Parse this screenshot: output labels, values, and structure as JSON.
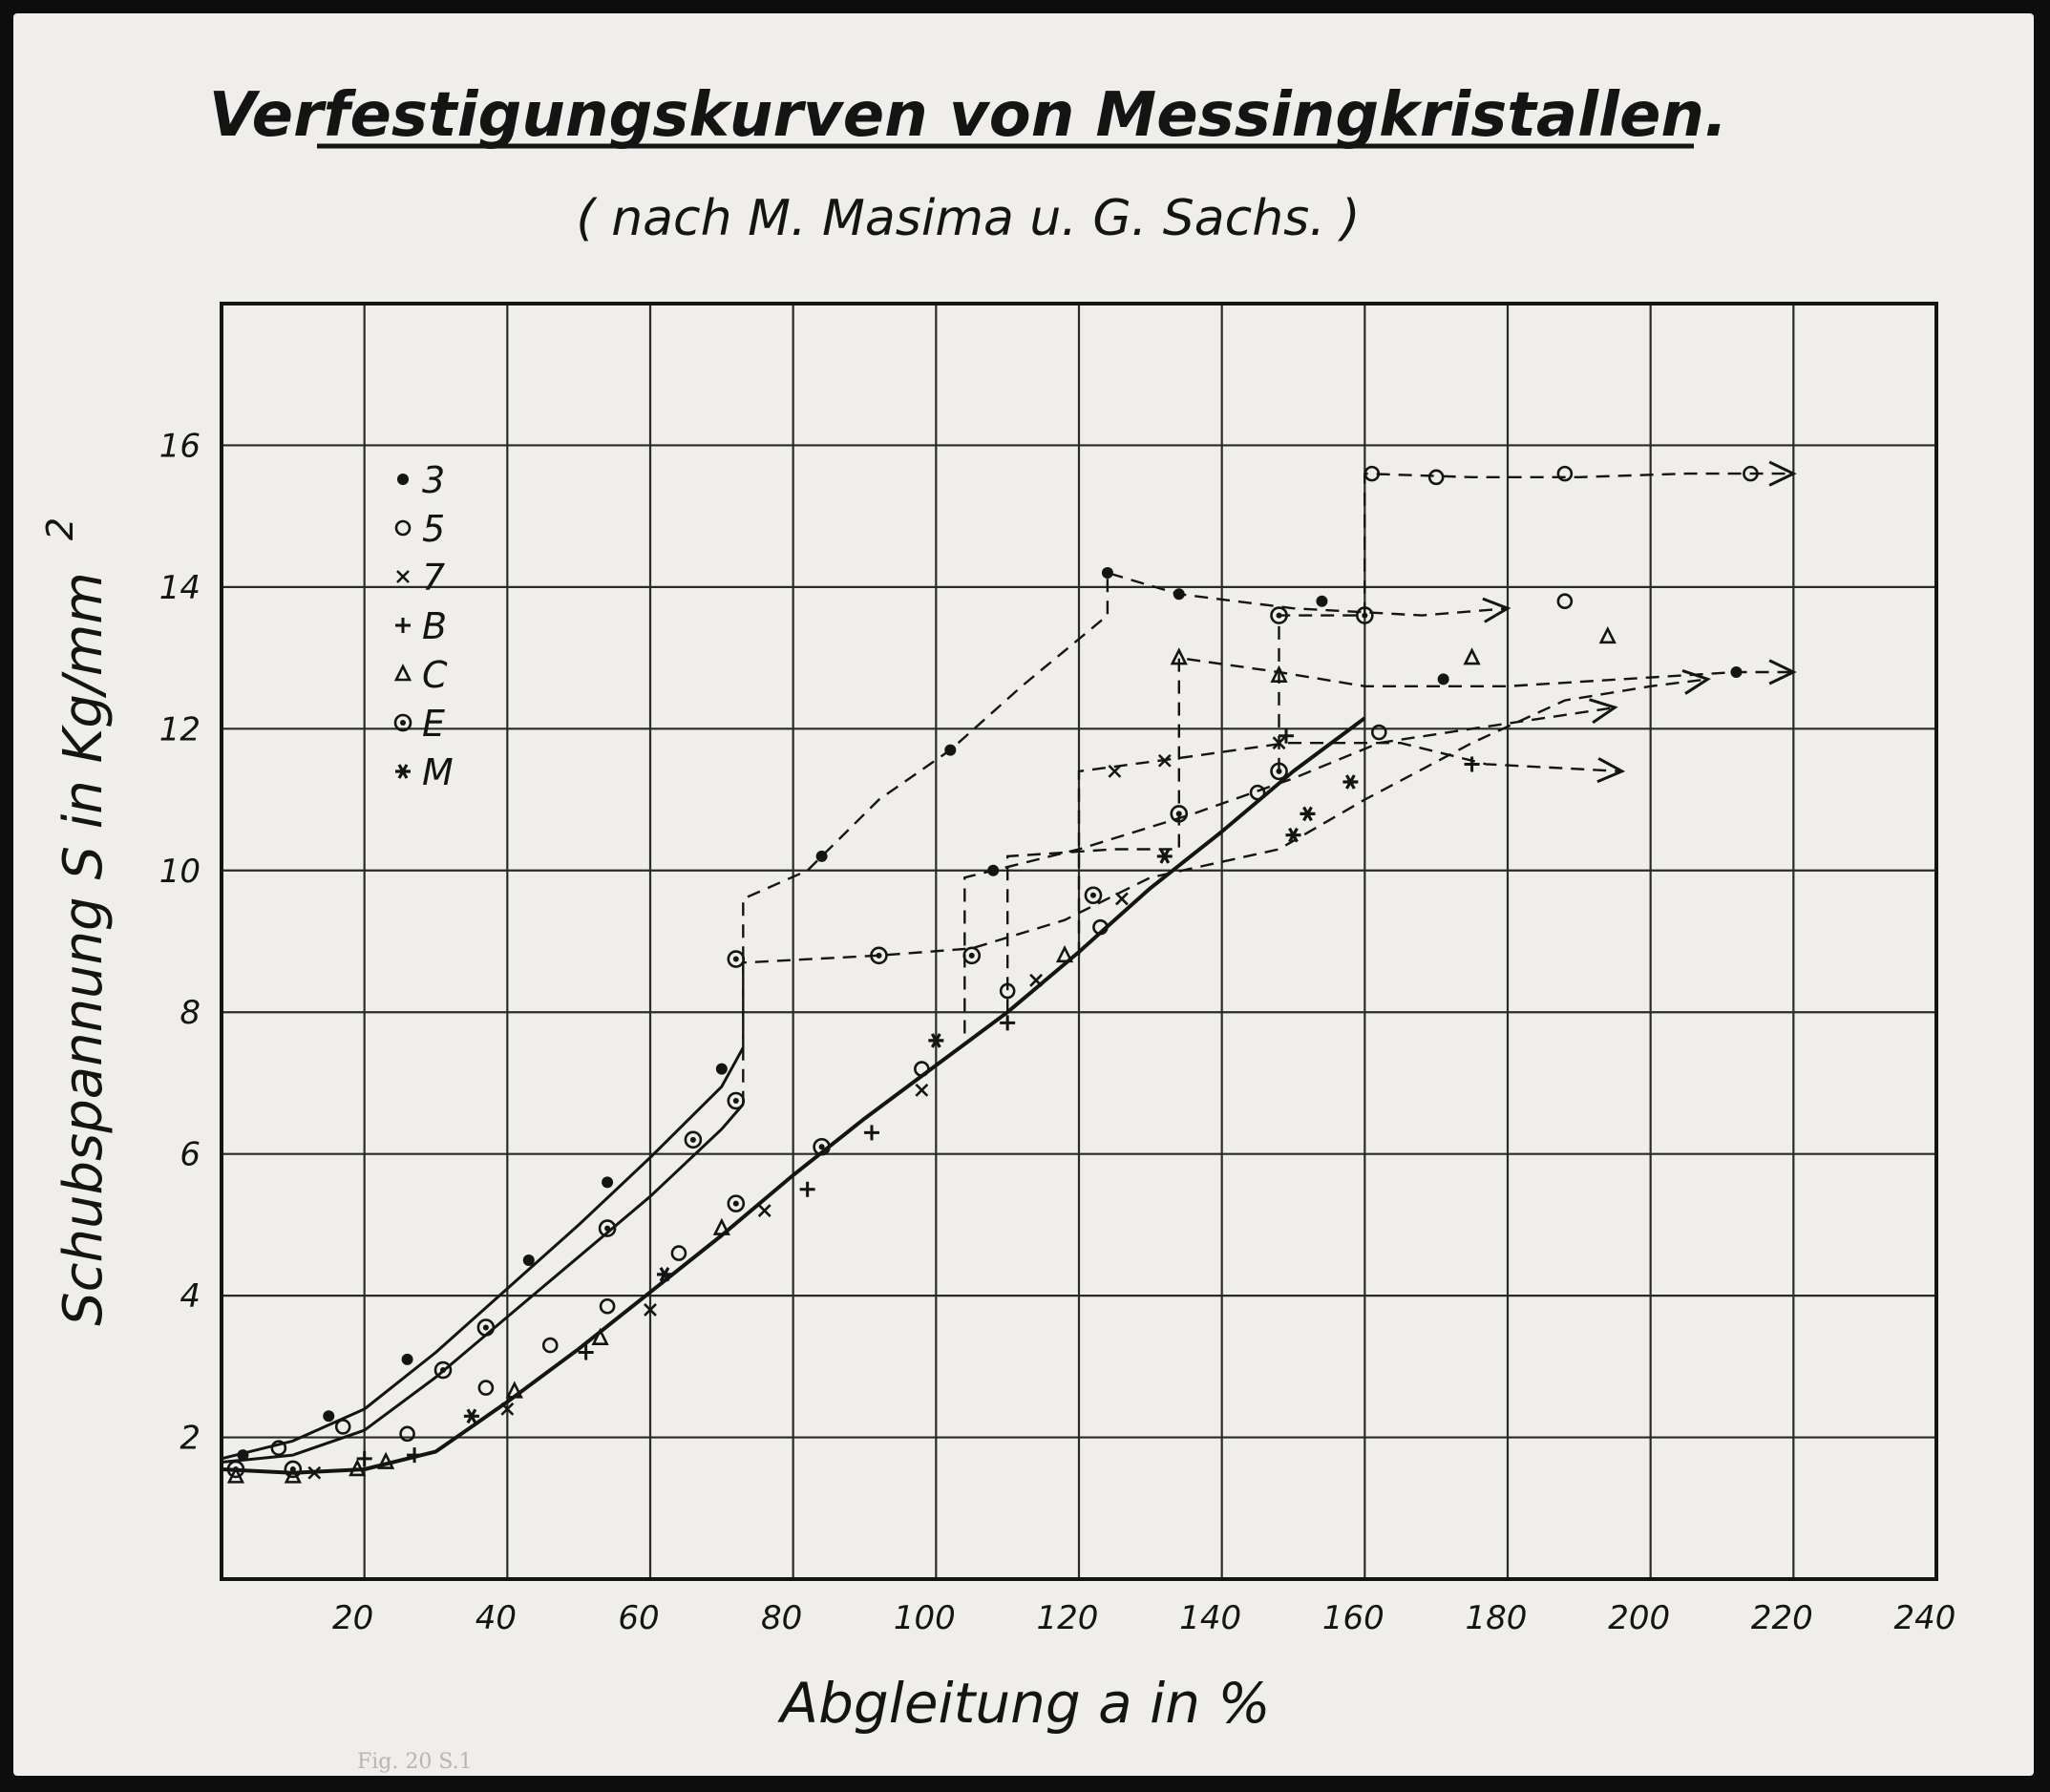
{
  "chart_data": {
    "type": "line",
    "title": "Verfestigungskurven von Messingkristallen.",
    "subtitle": "( nach M. Masima u. G. Sachs. )",
    "xlabel": "Abgleitung a in %",
    "ylabel": "Schubspannung S in Kg/mm",
    "ylabel_superscript": "2",
    "xlim": [
      0,
      240
    ],
    "ylim": [
      0,
      18
    ],
    "grid": true,
    "x_ticks": [
      "20",
      "40",
      "60",
      "80",
      "100",
      "120",
      "140",
      "160",
      "180",
      "200",
      "220",
      "240"
    ],
    "y_ticks": [
      "2",
      "4",
      "6",
      "8",
      "10",
      "12",
      "14",
      "16"
    ],
    "legend_position": "top-left",
    "legend": [
      {
        "symbol": "•",
        "label": "3"
      },
      {
        "symbol": "○",
        "label": "5"
      },
      {
        "symbol": "×",
        "label": "7"
      },
      {
        "symbol": "+",
        "label": "B"
      },
      {
        "symbol": "△",
        "label": "C"
      },
      {
        "symbol": "⊙",
        "label": "E"
      },
      {
        "symbol": "✱",
        "label": "M"
      }
    ],
    "solid_curves": [
      {
        "id": "upper",
        "points": [
          [
            0,
            1.7
          ],
          [
            10,
            1.95
          ],
          [
            20,
            2.4
          ],
          [
            30,
            3.2
          ],
          [
            40,
            4.1
          ],
          [
            50,
            5.0
          ],
          [
            60,
            5.95
          ],
          [
            70,
            6.95
          ],
          [
            73,
            7.5
          ]
        ]
      },
      {
        "id": "middle",
        "points": [
          [
            0,
            1.65
          ],
          [
            10,
            1.75
          ],
          [
            20,
            2.1
          ],
          [
            30,
            2.85
          ],
          [
            40,
            3.7
          ],
          [
            50,
            4.55
          ],
          [
            60,
            5.4
          ],
          [
            70,
            6.35
          ],
          [
            73,
            6.7
          ]
        ]
      },
      {
        "id": "lower",
        "points": [
          [
            0,
            1.55
          ],
          [
            10,
            1.5
          ],
          [
            20,
            1.55
          ],
          [
            30,
            1.8
          ],
          [
            40,
            2.5
          ],
          [
            50,
            3.25
          ],
          [
            60,
            4.05
          ],
          [
            70,
            4.85
          ],
          [
            80,
            5.7
          ],
          [
            90,
            6.5
          ],
          [
            100,
            7.25
          ],
          [
            110,
            8.0
          ],
          [
            120,
            8.85
          ],
          [
            130,
            9.75
          ],
          [
            140,
            10.55
          ],
          [
            150,
            11.4
          ],
          [
            160,
            12.15
          ]
        ]
      }
    ],
    "dashed_paths": [
      {
        "id": "s3",
        "points": [
          [
            73,
            7.5
          ],
          [
            73,
            9.6
          ],
          [
            82,
            10.0
          ],
          [
            92,
            11.0
          ],
          [
            102,
            11.7
          ],
          [
            112,
            12.6
          ],
          [
            124,
            13.6
          ],
          [
            124,
            14.2
          ],
          [
            134,
            13.9
          ],
          [
            150,
            13.7
          ],
          [
            168,
            13.6
          ],
          [
            180,
            13.7
          ]
        ],
        "arrow": true
      },
      {
        "id": "s5",
        "points": [
          [
            73,
            6.7
          ],
          [
            73,
            8.7
          ],
          [
            92,
            8.8
          ],
          [
            105,
            8.9
          ],
          [
            118,
            9.3
          ],
          [
            130,
            9.9
          ],
          [
            148,
            10.3
          ],
          [
            160,
            11.0
          ],
          [
            175,
            11.8
          ],
          [
            188,
            12.4
          ],
          [
            200,
            12.6
          ],
          [
            208,
            12.7
          ]
        ],
        "arrow": true
      },
      {
        "id": "sE",
        "points": [
          [
            104,
            7.7
          ],
          [
            104,
            9.9
          ],
          [
            120,
            10.3
          ],
          [
            136,
            10.8
          ],
          [
            150,
            11.3
          ],
          [
            162,
            11.8
          ],
          [
            175,
            12.0
          ],
          [
            195,
            12.3
          ]
        ],
        "arrow": true
      },
      {
        "id": "s7",
        "points": [
          [
            110,
            8.0
          ],
          [
            110,
            10.2
          ],
          [
            125,
            10.3
          ],
          [
            134,
            10.3
          ],
          [
            134,
            13.0
          ],
          [
            148,
            12.8
          ],
          [
            160,
            12.6
          ],
          [
            180,
            12.6
          ],
          [
            212,
            12.8
          ],
          [
            220,
            12.8
          ]
        ],
        "arrow": true
      },
      {
        "id": "sB",
        "points": [
          [
            120,
            8.8
          ],
          [
            120,
            11.4
          ],
          [
            135,
            11.6
          ],
          [
            149,
            11.8
          ],
          [
            165,
            11.8
          ],
          [
            177,
            11.5
          ],
          [
            196,
            11.4
          ]
        ],
        "arrow": true
      },
      {
        "id": "sC",
        "points": [
          [
            148,
            11.4
          ],
          [
            148,
            13.6
          ],
          [
            160,
            13.6
          ],
          [
            160,
            15.6
          ],
          [
            175,
            15.55
          ],
          [
            190,
            15.55
          ],
          [
            205,
            15.6
          ],
          [
            220,
            15.6
          ]
        ],
        "arrow": true
      }
    ],
    "points": [
      {
        "series": "3",
        "x": 3,
        "y": 1.75
      },
      {
        "series": "3",
        "x": 15,
        "y": 2.3
      },
      {
        "series": "3",
        "x": 26,
        "y": 3.1
      },
      {
        "series": "3",
        "x": 43,
        "y": 4.5
      },
      {
        "series": "3",
        "x": 54,
        "y": 5.6
      },
      {
        "series": "3",
        "x": 70,
        "y": 7.2
      },
      {
        "series": "3",
        "x": 84,
        "y": 10.2
      },
      {
        "series": "3",
        "x": 102,
        "y": 11.7
      },
      {
        "series": "3",
        "x": 124,
        "y": 14.2
      },
      {
        "series": "3",
        "x": 134,
        "y": 13.9
      },
      {
        "series": "3",
        "x": 154,
        "y": 13.8
      },
      {
        "series": "3",
        "x": 108,
        "y": 10.0
      },
      {
        "series": "3",
        "x": 171,
        "y": 12.7
      },
      {
        "series": "3",
        "x": 212,
        "y": 12.8
      },
      {
        "series": "5",
        "x": 8,
        "y": 1.85
      },
      {
        "series": "5",
        "x": 17,
        "y": 2.15
      },
      {
        "series": "5",
        "x": 26,
        "y": 2.05
      },
      {
        "series": "5",
        "x": 37,
        "y": 2.7
      },
      {
        "series": "5",
        "x": 46,
        "y": 3.3
      },
      {
        "series": "5",
        "x": 54,
        "y": 3.85
      },
      {
        "series": "5",
        "x": 64,
        "y": 4.6
      },
      {
        "series": "5",
        "x": 98,
        "y": 7.2
      },
      {
        "series": "5",
        "x": 110,
        "y": 8.3
      },
      {
        "series": "5",
        "x": 123,
        "y": 9.2
      },
      {
        "series": "5",
        "x": 145,
        "y": 11.1
      },
      {
        "series": "5",
        "x": 161,
        "y": 15.6
      },
      {
        "series": "5",
        "x": 170,
        "y": 15.55
      },
      {
        "series": "5",
        "x": 188,
        "y": 15.6
      },
      {
        "series": "5",
        "x": 214,
        "y": 15.6
      },
      {
        "series": "5",
        "x": 162,
        "y": 11.95
      },
      {
        "series": "5",
        "x": 188,
        "y": 13.8
      },
      {
        "series": "7",
        "x": 13,
        "y": 1.5
      },
      {
        "series": "7",
        "x": 40,
        "y": 2.4
      },
      {
        "series": "7",
        "x": 60,
        "y": 3.8
      },
      {
        "series": "7",
        "x": 76,
        "y": 5.2
      },
      {
        "series": "7",
        "x": 98,
        "y": 6.9
      },
      {
        "series": "7",
        "x": 114,
        "y": 8.45
      },
      {
        "series": "7",
        "x": 125,
        "y": 11.4
      },
      {
        "series": "7",
        "x": 132,
        "y": 11.55
      },
      {
        "series": "7",
        "x": 148,
        "y": 11.8
      },
      {
        "series": "7",
        "x": 126,
        "y": 9.6
      },
      {
        "series": "B",
        "x": 20,
        "y": 1.7
      },
      {
        "series": "B",
        "x": 27,
        "y": 1.75
      },
      {
        "series": "B",
        "x": 51,
        "y": 3.2
      },
      {
        "series": "B",
        "x": 82,
        "y": 5.5
      },
      {
        "series": "B",
        "x": 91,
        "y": 6.3
      },
      {
        "series": "B",
        "x": 110,
        "y": 7.85
      },
      {
        "series": "B",
        "x": 149,
        "y": 11.9
      },
      {
        "series": "B",
        "x": 175,
        "y": 11.5
      },
      {
        "series": "C",
        "x": 2,
        "y": 1.45
      },
      {
        "series": "C",
        "x": 10,
        "y": 1.45
      },
      {
        "series": "C",
        "x": 19,
        "y": 1.55
      },
      {
        "series": "C",
        "x": 23,
        "y": 1.65
      },
      {
        "series": "C",
        "x": 41,
        "y": 2.65
      },
      {
        "series": "C",
        "x": 53,
        "y": 3.4
      },
      {
        "series": "C",
        "x": 70,
        "y": 4.95
      },
      {
        "series": "C",
        "x": 118,
        "y": 8.8
      },
      {
        "series": "C",
        "x": 134,
        "y": 13.0
      },
      {
        "series": "C",
        "x": 148,
        "y": 12.75
      },
      {
        "series": "C",
        "x": 175,
        "y": 13.0
      },
      {
        "series": "C",
        "x": 194,
        "y": 13.3
      },
      {
        "series": "E",
        "x": 2,
        "y": 1.55
      },
      {
        "series": "E",
        "x": 10,
        "y": 1.55
      },
      {
        "series": "E",
        "x": 31,
        "y": 2.95
      },
      {
        "series": "E",
        "x": 37,
        "y": 3.55
      },
      {
        "series": "E",
        "x": 54,
        "y": 4.95
      },
      {
        "series": "E",
        "x": 66,
        "y": 6.2
      },
      {
        "series": "E",
        "x": 72,
        "y": 5.3
      },
      {
        "series": "E",
        "x": 72,
        "y": 6.75
      },
      {
        "series": "E",
        "x": 72,
        "y": 8.75
      },
      {
        "series": "E",
        "x": 84,
        "y": 6.1
      },
      {
        "series": "E",
        "x": 92,
        "y": 8.8
      },
      {
        "series": "E",
        "x": 105,
        "y": 8.8
      },
      {
        "series": "E",
        "x": 122,
        "y": 9.65
      },
      {
        "series": "E",
        "x": 134,
        "y": 10.8
      },
      {
        "series": "E",
        "x": 148,
        "y": 11.4
      },
      {
        "series": "E",
        "x": 148,
        "y": 13.6
      },
      {
        "series": "E",
        "x": 160,
        "y": 13.6
      },
      {
        "series": "M",
        "x": 35,
        "y": 2.3
      },
      {
        "series": "M",
        "x": 62,
        "y": 4.3
      },
      {
        "series": "M",
        "x": 100,
        "y": 7.6
      },
      {
        "series": "M",
        "x": 132,
        "y": 10.2
      },
      {
        "series": "M",
        "x": 150,
        "y": 10.5
      },
      {
        "series": "M",
        "x": 158,
        "y": 11.25
      },
      {
        "series": "M",
        "x": 152,
        "y": 10.8
      }
    ]
  },
  "caption": "Fig. 20   S.1"
}
